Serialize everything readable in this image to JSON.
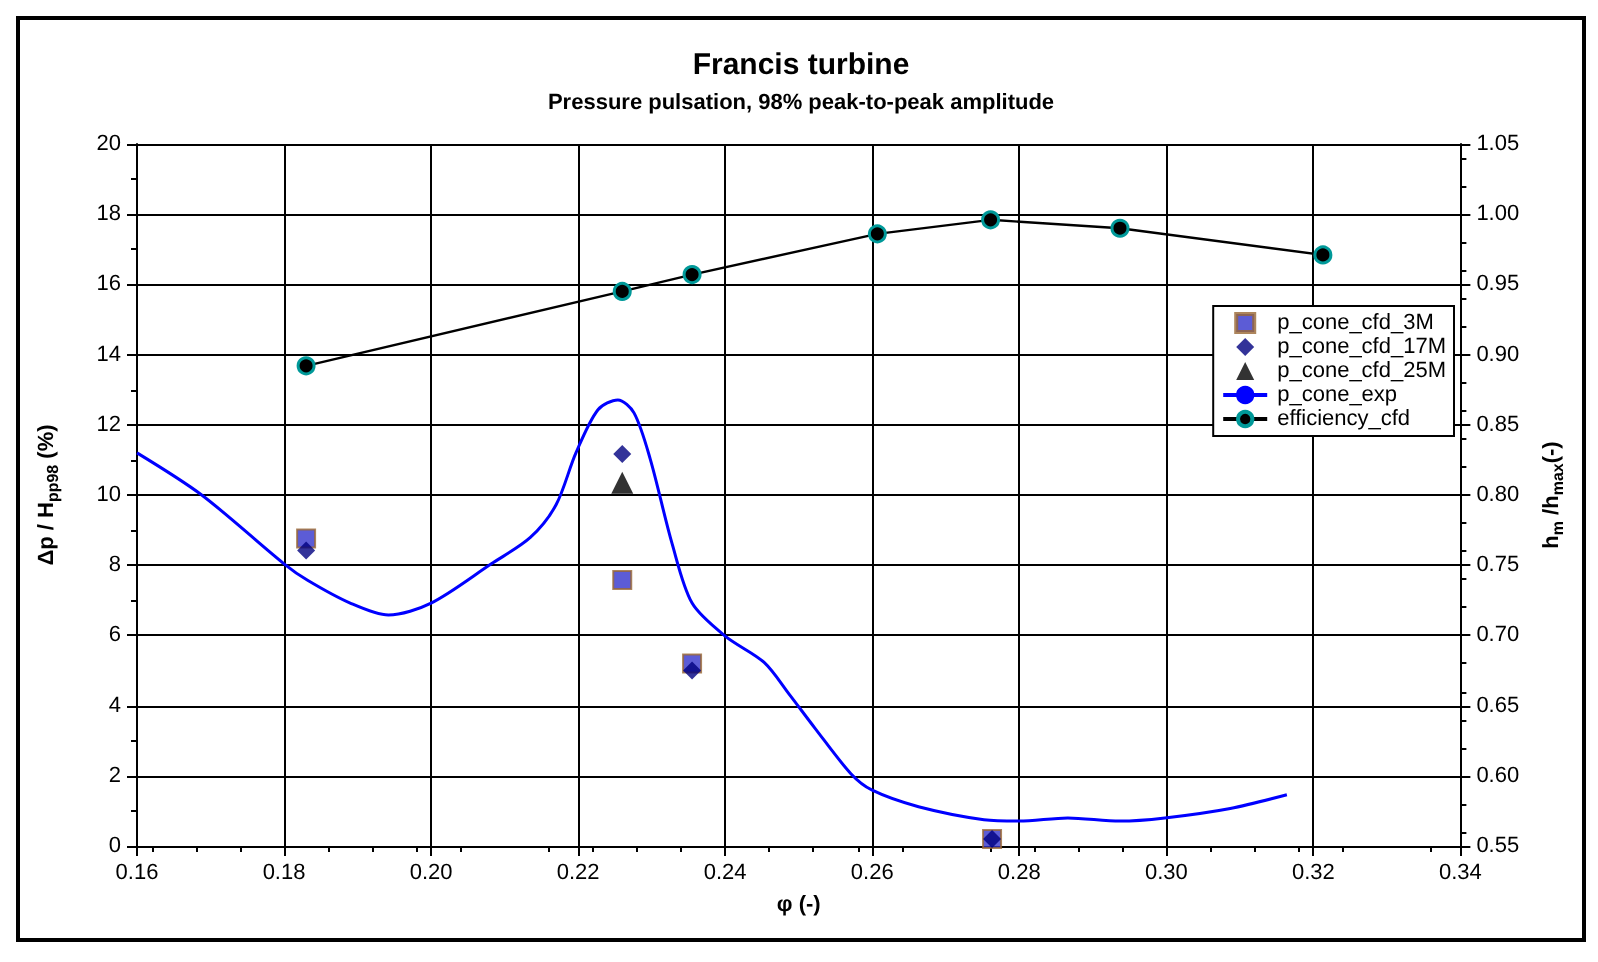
{
  "chart_data": {
    "type": "scatter",
    "title": "Francis turbine",
    "subtitle": "Pressure pulsation, 98% peak-to-peak amplitude",
    "xlabel": "φ (-)",
    "ylabel": "Δp / H$_{pp98}$ (%)",
    "y2label": "h$_{m}$ /h$_{max}$(-)",
    "xlim": [
      0.16,
      0.34
    ],
    "xticks": [
      {
        "value": 0.16,
        "label": "0.16"
      },
      {
        "value": 0.18,
        "label": "0.18"
      },
      {
        "value": 0.2,
        "label": "0.20"
      },
      {
        "value": 0.22,
        "label": "0.22"
      },
      {
        "value": 0.24,
        "label": "0.24"
      },
      {
        "value": 0.26,
        "label": "0.26"
      },
      {
        "value": 0.28,
        "label": "0.28"
      },
      {
        "value": 0.3,
        "label": "0.30"
      },
      {
        "value": 0.32,
        "label": "0.32"
      },
      {
        "value": 0.34,
        "label": "0.34"
      }
    ],
    "ylim": [
      0,
      20
    ],
    "yticks": [
      0,
      2,
      4,
      6,
      8,
      10,
      12,
      14,
      16,
      18,
      20
    ],
    "y2lim": [
      0.55,
      1.05
    ],
    "y2ticks": [
      {
        "value": 0.55,
        "label": "0.55"
      },
      {
        "value": 0.6,
        "label": "0.60"
      },
      {
        "value": 0.65,
        "label": "0.65"
      },
      {
        "value": 0.7,
        "label": "0.70"
      },
      {
        "value": 0.75,
        "label": "0.75"
      },
      {
        "value": 0.8,
        "label": "0.80"
      },
      {
        "value": 0.85,
        "label": "0.85"
      },
      {
        "value": 0.9,
        "label": "0.90"
      },
      {
        "value": 0.95,
        "label": "0.95"
      },
      {
        "value": 1.0,
        "label": "1.00"
      },
      {
        "value": 1.05,
        "label": "1.05"
      }
    ],
    "grid": true,
    "legend": "top right",
    "series": [
      {
        "name": "p_cone_cfd_3M",
        "marker": "square",
        "color": "#3333cc",
        "x": [
          0.183,
          0.226,
          0.2355,
          0.2763
        ],
        "values": [
          8.76,
          7.58,
          5.2,
          0.2
        ]
      },
      {
        "name": "p_cone_cfd_17M",
        "marker": "diamond",
        "color": "#000080",
        "x": [
          0.183,
          0.226,
          0.2355,
          0.2763
        ],
        "values": [
          8.42,
          11.17,
          5.0,
          0.2
        ]
      },
      {
        "name": "p_cone_cfd_25M",
        "marker": "triangle",
        "color": "#000000",
        "x": [
          0.226
        ],
        "values": [
          10.35
        ]
      },
      {
        "name": "p_cone_exp",
        "type": "line",
        "marker": "none",
        "color": "#0000ff",
        "x": [
          0.16,
          0.1688,
          0.18,
          0.1832,
          0.189,
          0.1942,
          0.2,
          0.2082,
          0.2135,
          0.217,
          0.2197,
          0.2227,
          0.2254,
          0.2276,
          0.2298,
          0.2328,
          0.2355,
          0.24,
          0.2453,
          0.2488,
          0.2522,
          0.2571,
          0.26,
          0.2663,
          0.2752,
          0.28,
          0.2866,
          0.2937,
          0.2998,
          0.3087,
          0.3164
        ],
        "values": [
          11.2,
          10.0,
          8.04,
          7.57,
          6.92,
          6.58,
          6.92,
          8.04,
          8.79,
          9.72,
          11.2,
          12.43,
          12.71,
          12.34,
          11.03,
          8.6,
          6.92,
          5.98,
          5.23,
          4.3,
          3.36,
          2.06,
          1.59,
          1.12,
          0.75,
          0.71,
          0.8,
          0.71,
          0.8,
          1.07,
          1.46
        ]
      },
      {
        "name": "efficiency_cfd",
        "type": "line",
        "marker": "circle",
        "axis": "y2",
        "color": "#000000",
        "x": [
          0.183,
          0.226,
          0.2355,
          0.2607,
          0.2761,
          0.2937,
          0.3213
        ],
        "values": [
          0.892,
          0.945,
          0.957,
          0.986,
          0.996,
          0.99,
          0.971
        ]
      }
    ]
  }
}
